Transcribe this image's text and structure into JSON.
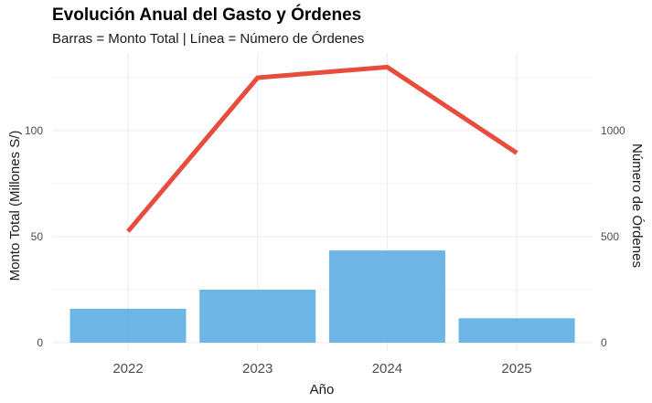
{
  "chart_data": {
    "type": "bar+line",
    "title": "Evolución Anual del Gasto y Órdenes",
    "subtitle": "Barras = Monto Total | Línea = Número de Órdenes",
    "xlabel": "Año",
    "ylabel_left": "Monto Total (Millones S/)",
    "ylabel_right": "Número de Órdenes",
    "categories": [
      "2022",
      "2023",
      "2024",
      "2025"
    ],
    "series": [
      {
        "type": "bar",
        "axis": "left",
        "values": [
          16,
          25,
          43.5,
          11.5
        ],
        "color": "#5DADE2"
      },
      {
        "type": "line",
        "axis": "right",
        "values": [
          525,
          1250,
          1300,
          895
        ],
        "color": "#E74C3C"
      }
    ],
    "y_left": {
      "ticks": [
        "0",
        "50",
        "100"
      ],
      "lim": [
        0,
        130
      ]
    },
    "y_right": {
      "ticks": [
        "0",
        "500",
        "1000"
      ],
      "lim": [
        0,
        1300
      ]
    },
    "grid": true,
    "legend": "none"
  }
}
